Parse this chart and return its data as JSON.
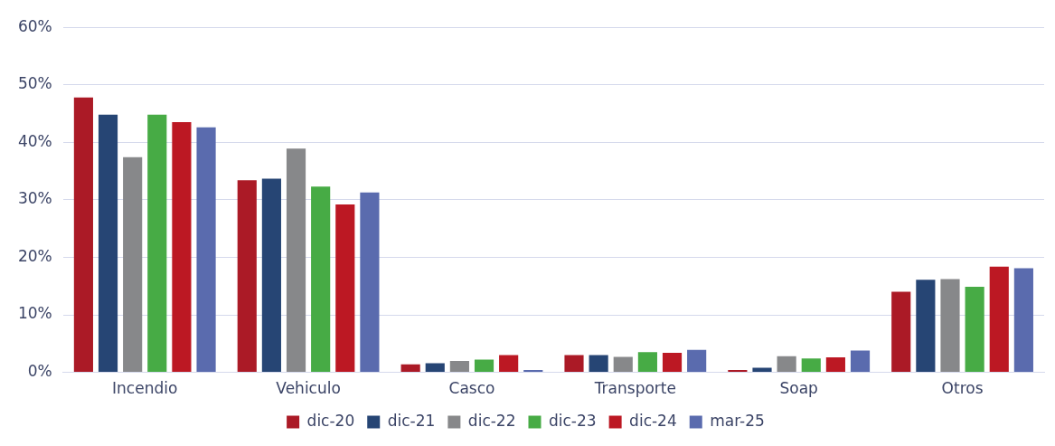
{
  "chart_data": {
    "type": "bar",
    "categories": [
      "Incendio",
      "Vehiculo",
      "Casco",
      "Transporte",
      "Soap",
      "Otros"
    ],
    "series": [
      {
        "name": "dic-20",
        "color": "#ab1a26",
        "values": [
          47.8,
          33.4,
          1.4,
          3.0,
          0.4,
          14.0
        ]
      },
      {
        "name": "dic-21",
        "color": "#264574",
        "values": [
          44.8,
          33.7,
          1.6,
          3.0,
          0.8,
          16.1
        ]
      },
      {
        "name": "dic-22",
        "color": "#87888a",
        "values": [
          37.4,
          38.9,
          2.0,
          2.7,
          2.8,
          16.2
        ]
      },
      {
        "name": "dic-23",
        "color": "#47ab45",
        "values": [
          44.8,
          32.3,
          2.2,
          3.5,
          2.4,
          14.9
        ]
      },
      {
        "name": "dic-24",
        "color": "#bc1823",
        "values": [
          43.5,
          29.2,
          3.0,
          3.4,
          2.6,
          18.4
        ]
      },
      {
        "name": "mar-25",
        "color": "#5a6bae",
        "values": [
          42.6,
          31.3,
          0.4,
          3.9,
          3.8,
          18.1
        ]
      }
    ],
    "ylim": [
      0,
      60
    ],
    "yticks": [
      {
        "value": 0,
        "label": "0%"
      },
      {
        "value": 10,
        "label": "10%"
      },
      {
        "value": 20,
        "label": "20%"
      },
      {
        "value": 30,
        "label": "30%"
      },
      {
        "value": 40,
        "label": "40%"
      },
      {
        "value": 50,
        "label": "50%"
      },
      {
        "value": 60,
        "label": "60%"
      }
    ],
    "grid": "y",
    "legend": "bottom"
  }
}
